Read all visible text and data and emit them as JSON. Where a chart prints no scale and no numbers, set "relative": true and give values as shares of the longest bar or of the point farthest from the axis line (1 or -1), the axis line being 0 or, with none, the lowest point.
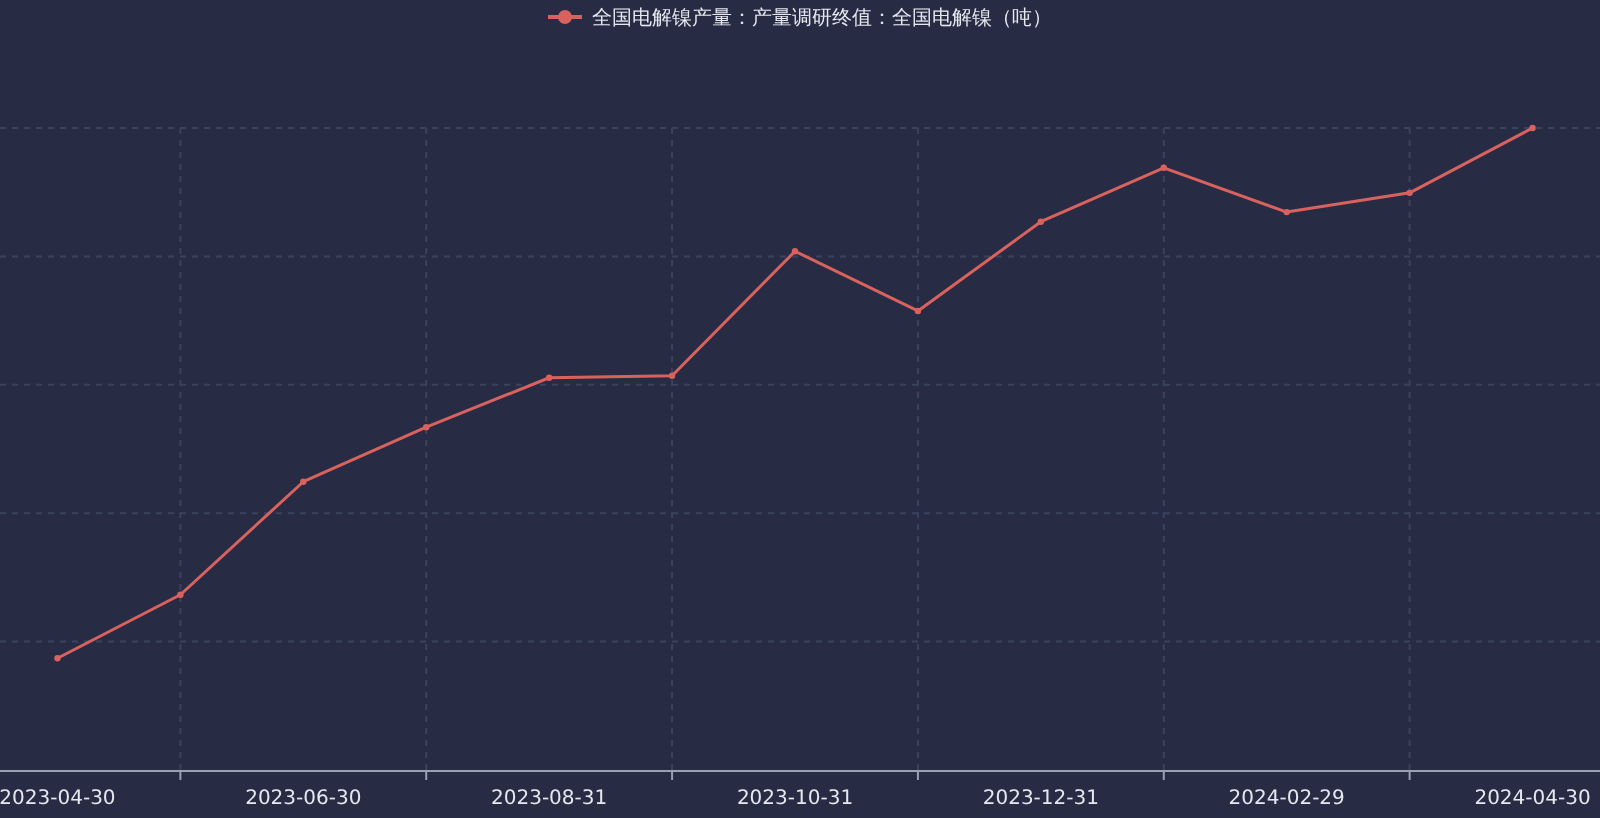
{
  "chart_data": {
    "type": "line",
    "relative": true,
    "categories": [
      "2023-04-30",
      null,
      "2023-06-30",
      null,
      "2023-08-31",
      null,
      "2023-10-31",
      null,
      "2023-12-31",
      null,
      "2024-02-29",
      null,
      "2024-04-30"
    ],
    "series": [
      {
        "name": "全国电解镍产量：产量调研终值：全国电解镍（吨）",
        "color": "#d9625e",
        "values": [
          0.174,
          0.273,
          0.449,
          0.534,
          0.611,
          0.614,
          0.808,
          0.715,
          0.854,
          0.938,
          0.869,
          0.899,
          1
        ]
      }
    ],
    "marker": "circle",
    "line_style": "solid",
    "grid": true,
    "legend": "top"
  }
}
